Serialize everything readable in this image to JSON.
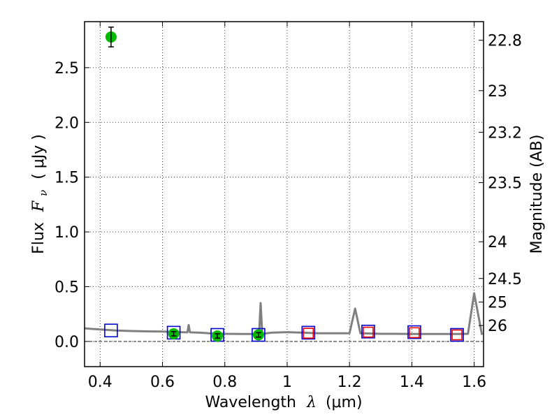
{
  "chart_data": {
    "type": "scatter",
    "xlabel": {
      "text": "Wavelength",
      "symbol": "λ",
      "unit": "(μm)"
    },
    "ylabel": {
      "text": "Flux",
      "symbol": "F",
      "subscript": "ν",
      "unit": "( μJy )"
    },
    "y2label": "Magnitude (AB)",
    "xlim": [
      0.35,
      1.63
    ],
    "ylim": [
      -0.23,
      2.92
    ],
    "grid": true,
    "xticks": [
      {
        "value": 0.4,
        "label": "0.4"
      },
      {
        "value": 0.6,
        "label": "0.6"
      },
      {
        "value": 0.8,
        "label": "0.8"
      },
      {
        "value": 1.0,
        "label": "1"
      },
      {
        "value": 1.2,
        "label": "1.2"
      },
      {
        "value": 1.4,
        "label": "1.4"
      },
      {
        "value": 1.6,
        "label": "1.6"
      }
    ],
    "yticks": [
      {
        "value": 0.0,
        "label": "0.0"
      },
      {
        "value": 0.5,
        "label": "0.5"
      },
      {
        "value": 1.0,
        "label": "1.0"
      },
      {
        "value": 1.5,
        "label": "1.5"
      },
      {
        "value": 2.0,
        "label": "2.0"
      },
      {
        "value": 2.5,
        "label": "2.5"
      }
    ],
    "y2ticks": [
      {
        "flux": 2.75,
        "label": "22.8"
      },
      {
        "flux": 2.29,
        "label": "23"
      },
      {
        "flux": 1.91,
        "label": "23.2"
      },
      {
        "flux": 1.45,
        "label": "23.5"
      },
      {
        "flux": 0.91,
        "label": "24"
      },
      {
        "flux": 0.575,
        "label": "24.5"
      },
      {
        "flux": 0.36,
        "label": "25"
      },
      {
        "flux": 0.145,
        "label": "26"
      }
    ],
    "series": [
      {
        "kind": "line",
        "color": "#808080",
        "points": [
          [
            0.35,
            0.12
          ],
          [
            0.37,
            0.115
          ],
          [
            0.4,
            0.11
          ],
          [
            0.45,
            0.1
          ],
          [
            0.5,
            0.095
          ],
          [
            0.55,
            0.092
          ],
          [
            0.6,
            0.09
          ],
          [
            0.65,
            0.085
          ],
          [
            0.68,
            0.083
          ],
          [
            0.684,
            0.15
          ],
          [
            0.688,
            0.083
          ],
          [
            0.72,
            0.08
          ],
          [
            0.75,
            0.075
          ],
          [
            0.8,
            0.07
          ],
          [
            0.85,
            0.068
          ],
          [
            0.9,
            0.068
          ],
          [
            0.91,
            0.07
          ],
          [
            0.915,
            0.35
          ],
          [
            0.92,
            0.07
          ],
          [
            0.95,
            0.08
          ],
          [
            1.0,
            0.085
          ],
          [
            1.05,
            0.08
          ],
          [
            1.1,
            0.075
          ],
          [
            1.15,
            0.075
          ],
          [
            1.2,
            0.075
          ],
          [
            1.218,
            0.3
          ],
          [
            1.235,
            0.075
          ],
          [
            1.3,
            0.07
          ],
          [
            1.35,
            0.07
          ],
          [
            1.4,
            0.068
          ],
          [
            1.45,
            0.068
          ],
          [
            1.5,
            0.068
          ],
          [
            1.55,
            0.068
          ],
          [
            1.58,
            0.07
          ],
          [
            1.6,
            0.44
          ],
          [
            1.625,
            0.06
          ]
        ]
      },
      {
        "kind": "squares",
        "color": "#0000cc",
        "points": [
          [
            0.435,
            0.1
          ],
          [
            0.636,
            0.08
          ],
          [
            0.776,
            0.06
          ],
          [
            0.908,
            0.06
          ],
          [
            1.068,
            0.08
          ],
          [
            1.26,
            0.09
          ],
          [
            1.408,
            0.085
          ],
          [
            1.545,
            0.06
          ]
        ]
      },
      {
        "kind": "squares",
        "color": "#ee0000",
        "points": [
          [
            1.068,
            0.075
          ],
          [
            1.26,
            0.085
          ],
          [
            1.408,
            0.08
          ],
          [
            1.545,
            0.06
          ]
        ]
      },
      {
        "kind": "errorbar",
        "color": "#00bb00",
        "points": [
          {
            "x": 0.435,
            "y": 2.78,
            "err": 0.09
          },
          {
            "x": 0.636,
            "y": 0.07,
            "err": 0.02
          },
          {
            "x": 0.776,
            "y": 0.05,
            "err": 0.02
          },
          {
            "x": 0.908,
            "y": 0.06,
            "err": 0.02
          }
        ]
      }
    ]
  }
}
